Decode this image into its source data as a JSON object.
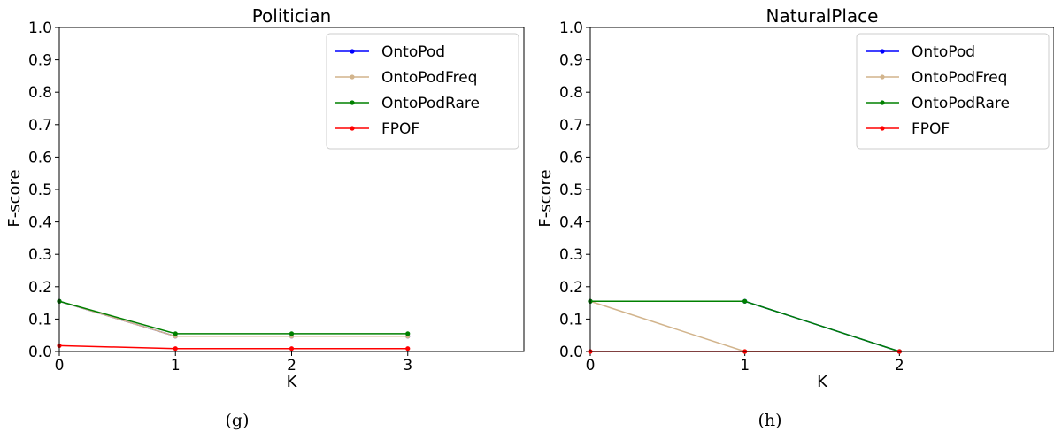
{
  "chart_data": [
    {
      "type": "line",
      "title": "Politician",
      "xlabel": "K",
      "ylabel": "F-score",
      "caption": "(g)",
      "xlim": [
        0,
        4
      ],
      "ylim": [
        0,
        1.0
      ],
      "xticks": [
        "0",
        "1",
        "2",
        "3"
      ],
      "yticks": [
        "0.0",
        "0.1",
        "0.2",
        "0.3",
        "0.4",
        "0.5",
        "0.6",
        "0.7",
        "0.8",
        "0.9",
        "1.0"
      ],
      "legend_position": "top-right",
      "grid": false,
      "x": [
        0,
        1,
        2,
        3
      ],
      "series": [
        {
          "name": "OntoPod",
          "color": "#0000ff",
          "values": [
            0.155,
            0.047,
            0.047,
            0.047
          ]
        },
        {
          "name": "OntoPodFreq",
          "color": "#d2b48c",
          "values": [
            0.155,
            0.047,
            0.047,
            0.047
          ]
        },
        {
          "name": "OntoPodRare",
          "color": "#008000",
          "values": [
            0.155,
            0.055,
            0.055,
            0.055
          ]
        },
        {
          "name": "FPOF",
          "color": "#ff0000",
          "values": [
            0.018,
            0.009,
            0.009,
            0.009
          ]
        }
      ]
    },
    {
      "type": "line",
      "title": "NaturalPlace",
      "xlabel": "K",
      "ylabel": "F-score",
      "caption": "(h)",
      "xlim": [
        0,
        3
      ],
      "ylim": [
        0,
        1.0
      ],
      "xticks": [
        "0",
        "1",
        "2"
      ],
      "yticks": [
        "0.0",
        "0.1",
        "0.2",
        "0.3",
        "0.4",
        "0.5",
        "0.6",
        "0.7",
        "0.8",
        "0.9",
        "1.0"
      ],
      "legend_position": "top-right",
      "grid": false,
      "x": [
        0,
        1,
        2
      ],
      "series": [
        {
          "name": "OntoPod",
          "color": "#0000ff",
          "values": [
            0.155,
            0.155,
            0.0
          ]
        },
        {
          "name": "OntoPodFreq",
          "color": "#d2b48c",
          "values": [
            0.155,
            0.0,
            0.0
          ]
        },
        {
          "name": "OntoPodRare",
          "color": "#008000",
          "values": [
            0.155,
            0.155,
            0.0
          ]
        },
        {
          "name": "FPOF",
          "color": "#ff0000",
          "values": [
            0.0,
            0.0,
            0.0
          ]
        }
      ]
    }
  ]
}
